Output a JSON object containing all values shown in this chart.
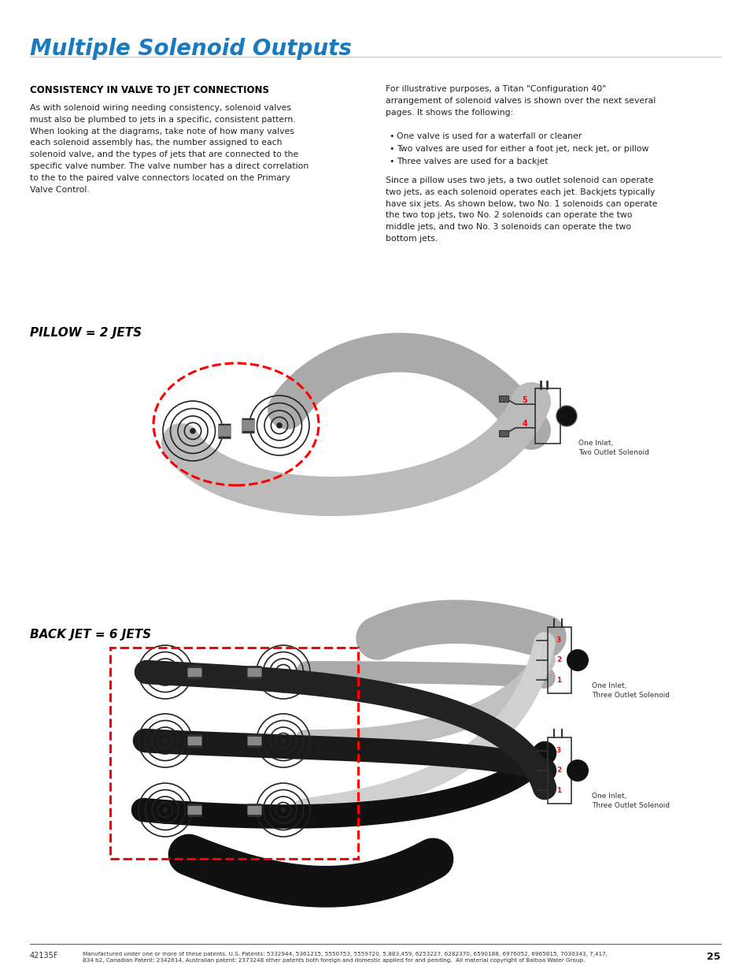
{
  "title": "Multiple Solenoid Outputs",
  "title_color": "#1a7abf",
  "title_fontsize": 20,
  "page_bg": "#ffffff",
  "section_heading": "CONSISTENCY IN VALVE TO JET CONNECTIONS",
  "left_body": "As with solenoid wiring needing consistency, solenoid valves\nmust also be plumbed to jets in a specific, consistent pattern.\nWhen looking at the diagrams, take note of how many valves\neach solenoid assembly has, the number assigned to each\nsolenoid valve, and the types of jets that are connected to the\nspecific valve number. The valve number has a direct correlation\nto the to the paired valve connectors located on the Primary\nValve Control.",
  "right_intro": "For illustrative purposes, a Titan \"Configuration 40\"\narrangement of solenoid valves is shown over the next several\npages. It shows the following:",
  "bullets": [
    "One valve is used for a waterfall or cleaner",
    "Two valves are used for either a foot jet, neck jet, or pillow",
    "Three valves are used for a backjet"
  ],
  "right_body": "Since a pillow uses two jets, a two outlet solenoid can operate\ntwo jets, as each solenoid operates each jet. Backjets typically\nhave six jets. As shown below, two No. 1 solenoids can operate\nthe two top jets, two No. 2 solenoids can operate the two\nmiddle jets, and two No. 3 solenoids can operate the two\nbottom jets.",
  "pillow_label": "PILLOW = 2 JETS",
  "backjet_label": "BACK JET = 6 JETS",
  "solenoid_label_top": "One Inlet,\nTwo Outlet Solenoid",
  "solenoid_label_mid": "One Inlet,\nThree Outlet Solenoid",
  "solenoid_label_bot": "One Inlet,\nThree Outlet Solenoid",
  "footer_left": "42135F",
  "footer_patent": "Manufactured under one or more of these patents. U.S. Patents: 5332944, 5361215, 5550753, 5559720, 5,883,459, 6253227, 6282370, 6590188, 6976052, 6965815, 7030343, 7,417,\n834 b2, Canadian Patent: 2342614, Australian patent: 2373248 other patents both foreign and domestic applied for and pending.  All material copyright of Balboa Water Group.",
  "footer_page": "25"
}
